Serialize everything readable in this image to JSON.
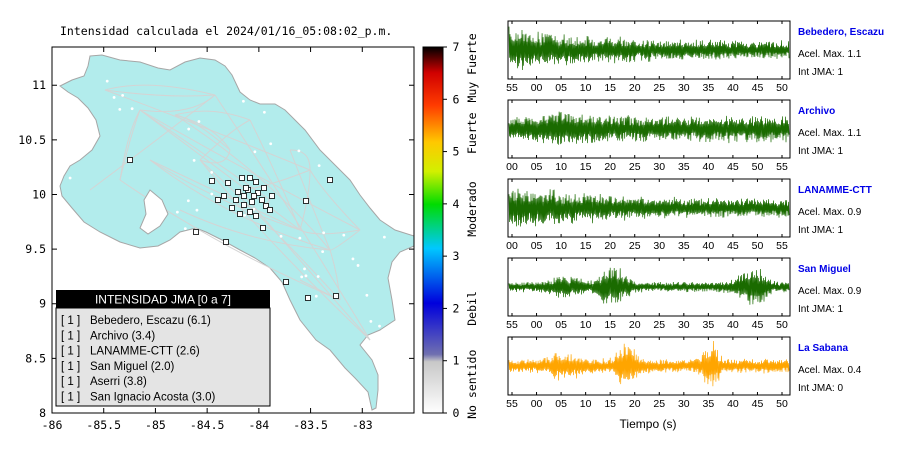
{
  "map": {
    "title": "Intensidad calculada el 2024/01/16_05:08:02_p.m.",
    "lon_ticks": [
      "-86",
      "-85.5",
      "-85",
      "-84.5",
      "-84",
      "-83.5",
      "-83"
    ],
    "lat_ticks": [
      "11",
      "10.5",
      "10",
      "9.5",
      "9",
      "8.5",
      "8"
    ],
    "legend": {
      "title": "INTENSIDAD JMA [0 a 7]",
      "items": [
        {
          "tag": "[ 1 ]",
          "name": "Bebedero, Escazu (6.1)"
        },
        {
          "tag": "[ 1 ]",
          "name": "Archivo (3.4)"
        },
        {
          "tag": "[ 1 ]",
          "name": "LANAMME-CTT (2.6)"
        },
        {
          "tag": "[ 1 ]",
          "name": "San Miguel (2.0)"
        },
        {
          "tag": "[ 1 ]",
          "name": "Aserri (3.8)"
        },
        {
          "tag": "[ 1 ]",
          "name": "San Ignacio Acosta (3.0)"
        }
      ]
    },
    "colors": {
      "land": "#b2ecec",
      "border": "#a6a6a6",
      "road": "#d4d4d4",
      "station_fill": "#ffffff",
      "station_stroke": "#000000"
    }
  },
  "colorbar": {
    "ticks": [
      "0",
      "1",
      "2",
      "3",
      "4",
      "5",
      "6",
      "7"
    ],
    "labels": [
      "No sentido",
      "Debil",
      "Moderado",
      "Fuerte",
      "Muy Fuerte"
    ]
  },
  "waveforms": {
    "xlabel": "Tiempo (s)",
    "panels": [
      {
        "name": "Bebedero, Escazu",
        "acel": "Acel. Max. 1.1",
        "int": "Int JMA: 1",
        "color": "#1a6b00",
        "envelope": "decay",
        "ticks": [
          "55",
          "00",
          "05",
          "10",
          "15",
          "20",
          "25",
          "30",
          "35",
          "40",
          "45",
          "50"
        ]
      },
      {
        "name": "Archivo",
        "acel": "Acel. Max. 1.1",
        "int": "Int JMA: 1",
        "color": "#1a6b00",
        "envelope": "steady",
        "ticks": [
          "00",
          "05",
          "10",
          "15",
          "20",
          "25",
          "30",
          "35",
          "40",
          "45",
          "50",
          "55"
        ]
      },
      {
        "name": "LANAMME-CTT",
        "acel": "Acel. Max. 0.9",
        "int": "Int JMA: 1",
        "color": "#1a6b00",
        "envelope": "decay",
        "ticks": [
          "00",
          "05",
          "10",
          "15",
          "20",
          "25",
          "30",
          "35",
          "40",
          "45",
          "50",
          "55"
        ]
      },
      {
        "name": "San Miguel",
        "acel": "Acel. Max. 0.9",
        "int": "Int JMA: 1",
        "color": "#1a6b00",
        "envelope": "bursts",
        "ticks": [
          "55",
          "00",
          "05",
          "10",
          "15",
          "20",
          "25",
          "30",
          "35",
          "40",
          "45",
          "50"
        ]
      },
      {
        "name": "La Sabana",
        "acel": "Acel. Max. 0.4",
        "int": "Int JMA: 0",
        "color": "#ffa500",
        "envelope": "spikes",
        "ticks": [
          "55",
          "00",
          "05",
          "10",
          "15",
          "20",
          "25",
          "30",
          "35",
          "40",
          "45",
          "50"
        ]
      }
    ],
    "name_color": "#0000e6"
  }
}
